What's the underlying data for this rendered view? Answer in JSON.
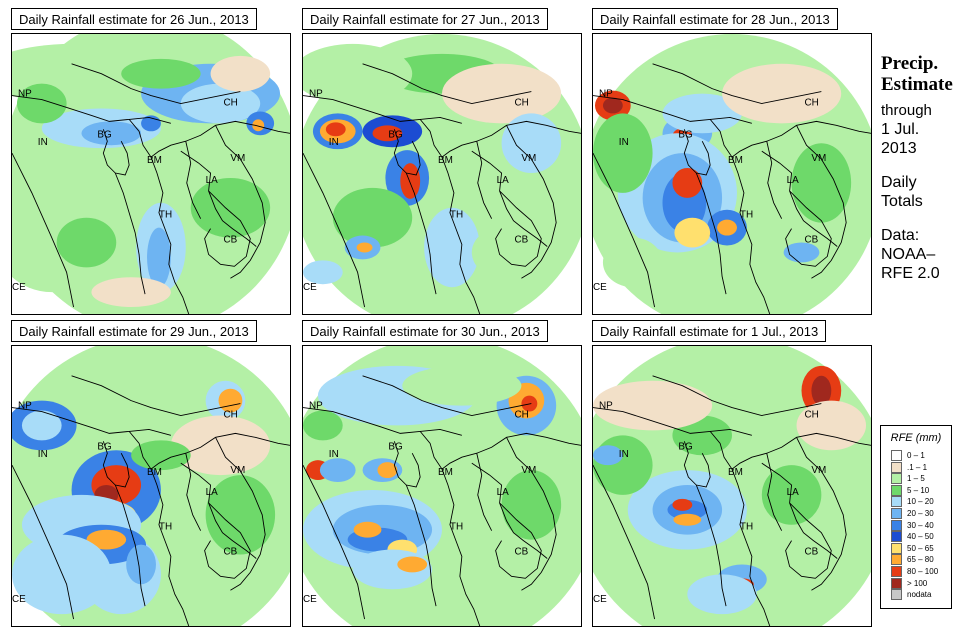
{
  "panels": [
    {
      "title": "Daily Rainfall estimate for  26 Jun., 2013",
      "date": "26 Jun., 2013"
    },
    {
      "title": "Daily Rainfall estimate for  27 Jun., 2013",
      "date": "27 Jun., 2013"
    },
    {
      "title": "Daily Rainfall estimate for  28 Jun., 2013",
      "date": "28 Jun., 2013"
    },
    {
      "title": "Daily Rainfall estimate for  29 Jun., 2013",
      "date": "29 Jun., 2013"
    },
    {
      "title": "Daily Rainfall estimate for  30 Jun., 2013",
      "date": "30 Jun., 2013"
    },
    {
      "title": "Daily Rainfall estimate for  1 Jul., 2013",
      "date": "1 Jul., 2013"
    }
  ],
  "country_labels": [
    "NP",
    "CH",
    "IN",
    "BG",
    "BM",
    "VM",
    "LA",
    "TH",
    "CB",
    "CE"
  ],
  "sidebar": {
    "title_line1": "Precip.",
    "title_line2": "Estimate",
    "through_label": "through",
    "through_date_line1": "1 Jul.",
    "through_date_line2": "2013",
    "totals_line1": "Daily",
    "totals_line2": "Totals",
    "source_line1": "Data:",
    "source_line2": "NOAA–",
    "source_line3": "RFE 2.0"
  },
  "legend": {
    "title": "RFE (mm)",
    "items": [
      {
        "label": "0 – 1",
        "color": "#ffffff"
      },
      {
        "label": ".1 – 1",
        "color": "#f2e0c8"
      },
      {
        "label": "1 – 5",
        "color": "#b4f0a6"
      },
      {
        "label": "5 – 10",
        "color": "#6ed96a"
      },
      {
        "label": "10 – 20",
        "color": "#a8dcf8"
      },
      {
        "label": "20 – 30",
        "color": "#6eb4f2"
      },
      {
        "label": "30 – 40",
        "color": "#3a82e6"
      },
      {
        "label": "40 – 50",
        "color": "#1c4cd2"
      },
      {
        "label": "50 – 65",
        "color": "#ffe06e"
      },
      {
        "label": "65 – 80",
        "color": "#ffaa32"
      },
      {
        "label": "80 – 100",
        "color": "#e63c14"
      },
      {
        "label": "> 100",
        "color": "#a0281e"
      },
      {
        "label": "nodata",
        "color": "#c8c8c8"
      }
    ]
  }
}
